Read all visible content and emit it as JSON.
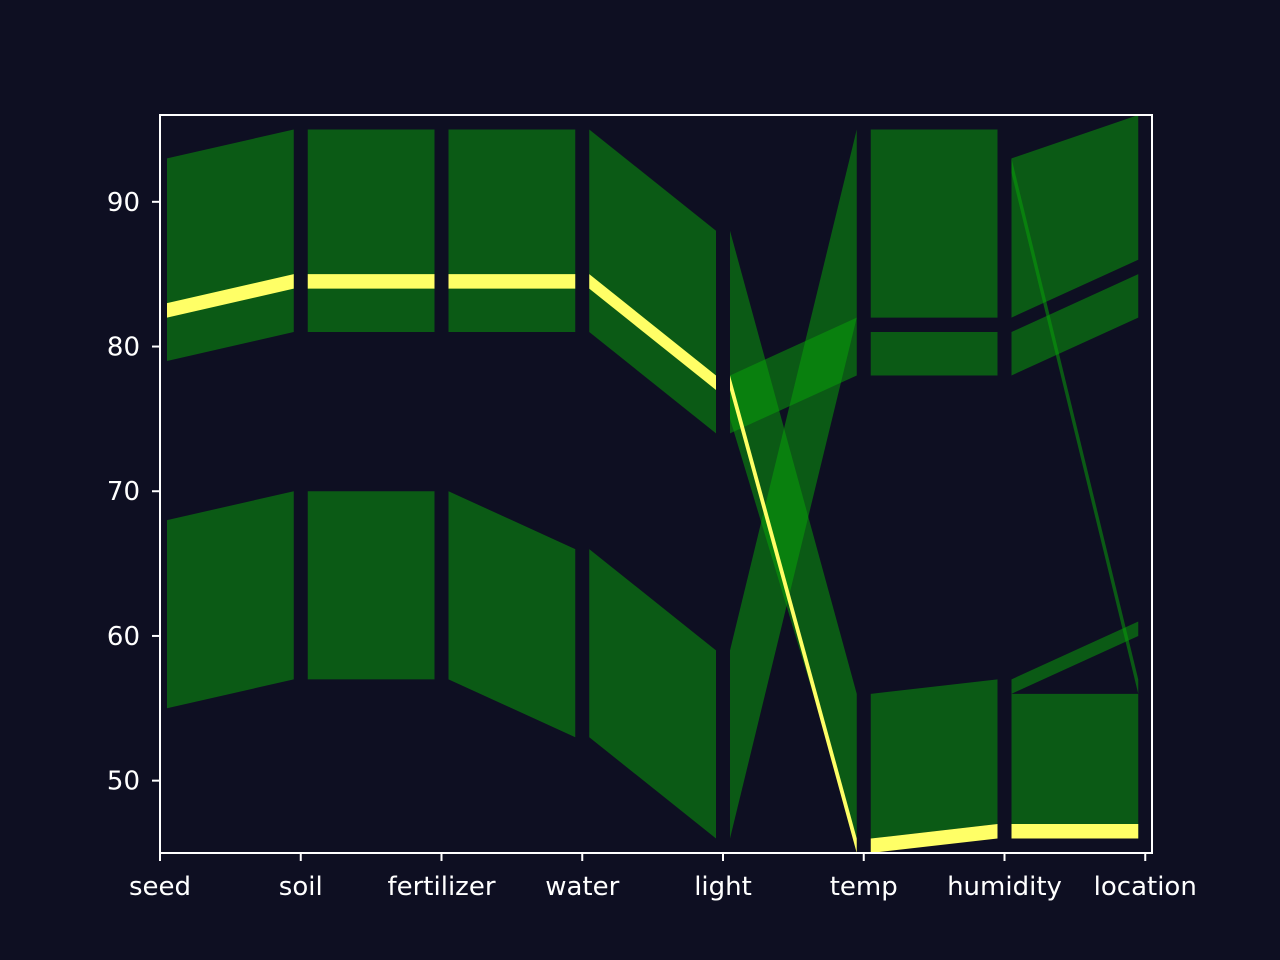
{
  "chart_data": {
    "type": "parallel-sets",
    "title": "",
    "xlabel": "",
    "ylabel": "",
    "axes": [
      "seed",
      "soil",
      "fertilizer",
      "water",
      "light",
      "temp",
      "humidity",
      "location"
    ],
    "ylim": [
      45,
      96
    ],
    "yticks": [
      50,
      60,
      70,
      80,
      90
    ],
    "grid": false,
    "colors": {
      "background": "#0e0f22",
      "band": "#08a508",
      "band_opacity": 0.5,
      "highlight": "#ffff66",
      "frame": "#ffffff"
    },
    "bands": [
      {
        "from": "seed",
        "to": "soil",
        "left": [
          79,
          93
        ],
        "right": [
          81,
          95
        ]
      },
      {
        "from": "soil",
        "to": "fertilizer",
        "left": [
          81,
          95
        ],
        "right": [
          81,
          95
        ]
      },
      {
        "from": "fertilizer",
        "to": "water",
        "left": [
          81,
          95
        ],
        "right": [
          81,
          95
        ]
      },
      {
        "from": "water",
        "to": "light",
        "left": [
          74,
          88
        ],
        "right": [
          74,
          88
        ],
        "shape": "skew",
        "left_range": [
          81,
          95
        ]
      },
      {
        "from": "seed",
        "to": "soil",
        "left": [
          55,
          68
        ],
        "right": [
          57,
          70
        ]
      },
      {
        "from": "soil",
        "to": "fertilizer",
        "left": [
          57,
          70
        ],
        "right": [
          57,
          70
        ]
      },
      {
        "from": "fertilizer",
        "to": "water",
        "left": [
          57,
          70
        ],
        "right": [
          53,
          66
        ]
      },
      {
        "from": "water",
        "to": "light",
        "left": [
          53,
          66
        ],
        "right": [
          46,
          59
        ]
      },
      {
        "from": "light",
        "to": "temp",
        "left": [
          74,
          78
        ],
        "right": [
          78,
          82
        ]
      },
      {
        "from": "light",
        "to": "temp",
        "left": [
          46,
          59
        ],
        "right": [
          82,
          95
        ]
      },
      {
        "from": "light",
        "to": "temp",
        "left": [
          75,
          88
        ],
        "right": [
          46,
          56
        ]
      },
      {
        "from": "temp",
        "to": "humidity",
        "left": [
          82,
          95
        ],
        "right": [
          82,
          95
        ]
      },
      {
        "from": "temp",
        "to": "humidity",
        "left": [
          78,
          81
        ],
        "right": [
          78,
          81
        ]
      },
      {
        "from": "temp",
        "to": "humidity",
        "left": [
          46,
          56
        ],
        "right": [
          47,
          57
        ]
      },
      {
        "from": "humidity",
        "to": "location",
        "left": [
          82,
          93
        ],
        "right": [
          86,
          96
        ]
      },
      {
        "from": "humidity",
        "to": "location",
        "left": [
          78,
          81
        ],
        "right": [
          82,
          85
        ]
      },
      {
        "from": "humidity",
        "to": "location",
        "left": [
          92,
          93
        ],
        "right": [
          56,
          57
        ]
      },
      {
        "from": "humidity",
        "to": "location",
        "left": [
          56,
          57
        ],
        "right": [
          60,
          61
        ]
      },
      {
        "from": "humidity",
        "to": "location",
        "left": [
          46,
          56
        ],
        "right": [
          46,
          56
        ]
      }
    ],
    "highlight_path": [
      {
        "axis": "seed",
        "range": [
          82,
          83
        ]
      },
      {
        "axis": "soil",
        "range": [
          84,
          85
        ]
      },
      {
        "axis": "fertilizer",
        "range": [
          84,
          85
        ]
      },
      {
        "axis": "water",
        "range": [
          84,
          85
        ]
      },
      {
        "axis": "light",
        "range": [
          77,
          78
        ]
      },
      {
        "axis": "temp",
        "range": [
          45,
          46
        ]
      },
      {
        "axis": "humidity",
        "range": [
          46,
          47
        ]
      },
      {
        "axis": "location",
        "range": [
          46,
          47
        ]
      }
    ]
  }
}
